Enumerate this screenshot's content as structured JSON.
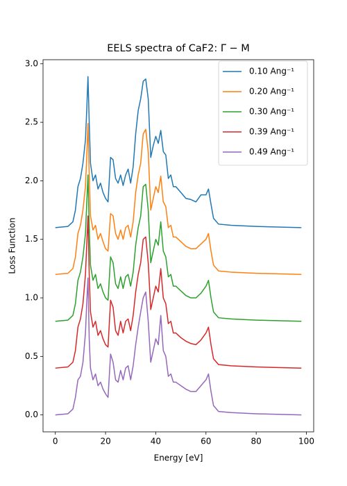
{
  "chart_data": {
    "type": "line",
    "title": "EELS spectra of CaF2: Γ − M",
    "x_label": "Energy [eV]",
    "y_label": "Loss Function",
    "x": [
      0,
      5,
      7,
      8,
      9,
      10,
      11,
      12,
      12.5,
      13,
      13.5,
      14,
      15,
      16,
      17,
      18,
      19,
      20,
      21,
      22,
      23,
      24,
      25,
      26,
      27,
      28,
      29,
      30,
      31,
      32,
      33,
      34,
      35,
      36,
      37,
      38,
      39,
      40,
      41,
      42,
      43,
      44,
      45,
      46,
      47,
      48,
      50,
      52,
      54,
      56,
      58,
      60,
      61,
      62,
      63,
      65,
      70,
      80,
      98
    ],
    "series": [
      {
        "name": "0.10 Ang⁻¹",
        "color": "#1f77b4",
        "values": [
          1.6,
          1.61,
          1.65,
          1.75,
          1.95,
          2.02,
          2.15,
          2.35,
          2.6,
          2.89,
          2.5,
          2.15,
          2.0,
          2.05,
          1.93,
          1.98,
          1.9,
          1.85,
          1.82,
          2.2,
          2.18,
          2.02,
          1.98,
          2.05,
          1.96,
          2.05,
          2.1,
          1.98,
          2.12,
          2.4,
          2.6,
          2.7,
          2.85,
          2.87,
          2.7,
          2.2,
          2.3,
          2.38,
          2.32,
          2.43,
          2.25,
          2.22,
          2.02,
          2.05,
          1.95,
          1.95,
          1.9,
          1.85,
          1.84,
          1.82,
          1.88,
          1.88,
          1.93,
          1.8,
          1.68,
          1.63,
          1.62,
          1.61,
          1.6
        ]
      },
      {
        "name": "0.20 Ang⁻¹",
        "color": "#ff7f0e",
        "values": [
          1.2,
          1.21,
          1.25,
          1.35,
          1.55,
          1.62,
          1.75,
          1.95,
          2.2,
          2.49,
          2.05,
          1.7,
          1.58,
          1.62,
          1.5,
          1.55,
          1.48,
          1.42,
          1.4,
          1.72,
          1.7,
          1.55,
          1.5,
          1.58,
          1.5,
          1.6,
          1.62,
          1.52,
          1.65,
          1.9,
          2.05,
          2.15,
          2.4,
          2.44,
          2.25,
          1.75,
          1.85,
          1.95,
          1.9,
          2.04,
          1.82,
          1.78,
          1.6,
          1.62,
          1.52,
          1.52,
          1.48,
          1.44,
          1.42,
          1.42,
          1.46,
          1.5,
          1.55,
          1.4,
          1.28,
          1.23,
          1.22,
          1.21,
          1.2
        ]
      },
      {
        "name": "0.30 Ang⁻¹",
        "color": "#2ca02c",
        "values": [
          0.8,
          0.81,
          0.85,
          0.95,
          1.15,
          1.22,
          1.35,
          1.55,
          1.8,
          2.05,
          1.6,
          1.28,
          1.15,
          1.2,
          1.08,
          1.12,
          1.05,
          1.0,
          0.98,
          1.35,
          1.3,
          1.12,
          1.08,
          1.18,
          1.08,
          1.18,
          1.2,
          1.1,
          1.22,
          1.45,
          1.6,
          1.7,
          1.95,
          1.97,
          1.75,
          1.3,
          1.4,
          1.5,
          1.45,
          1.65,
          1.4,
          1.35,
          1.18,
          1.2,
          1.1,
          1.1,
          1.06,
          1.02,
          1.0,
          1.0,
          1.04,
          1.1,
          1.15,
          1.0,
          0.88,
          0.83,
          0.82,
          0.81,
          0.8
        ]
      },
      {
        "name": "0.39 Ang⁻¹",
        "color": "#d62728",
        "values": [
          0.4,
          0.41,
          0.45,
          0.55,
          0.75,
          0.82,
          0.95,
          1.2,
          1.45,
          1.7,
          1.2,
          0.88,
          0.75,
          0.8,
          0.68,
          0.72,
          0.65,
          0.6,
          0.58,
          0.98,
          0.92,
          0.72,
          0.68,
          0.8,
          0.7,
          0.8,
          0.82,
          0.72,
          0.85,
          1.05,
          1.2,
          1.3,
          1.5,
          1.52,
          1.3,
          0.9,
          1.0,
          1.1,
          1.05,
          1.25,
          1.0,
          0.95,
          0.78,
          0.8,
          0.7,
          0.7,
          0.66,
          0.63,
          0.61,
          0.6,
          0.64,
          0.7,
          0.75,
          0.6,
          0.48,
          0.43,
          0.42,
          0.41,
          0.4
        ]
      },
      {
        "name": "0.49 Ang⁻¹",
        "color": "#9467bd",
        "values": [
          0,
          0.01,
          0.05,
          0.15,
          0.3,
          0.33,
          0.45,
          0.7,
          0.95,
          1.17,
          0.65,
          0.4,
          0.3,
          0.35,
          0.25,
          0.28,
          0.22,
          0.18,
          0.15,
          0.52,
          0.45,
          0.3,
          0.28,
          0.38,
          0.3,
          0.4,
          0.42,
          0.3,
          0.42,
          0.6,
          0.75,
          0.88,
          1.0,
          1.05,
          0.8,
          0.45,
          0.55,
          0.65,
          0.6,
          0.85,
          0.55,
          0.5,
          0.33,
          0.35,
          0.28,
          0.28,
          0.25,
          0.22,
          0.2,
          0.2,
          0.25,
          0.3,
          0.35,
          0.2,
          0.08,
          0.03,
          0.02,
          0.01,
          0.0
        ]
      }
    ],
    "xlim": [
      -4.9,
      102.9
    ],
    "xticks": [
      0,
      20,
      40,
      60,
      80,
      100
    ],
    "ylim": [
      -0.1445,
      3.0345
    ],
    "yticks": [
      {
        "value": 0,
        "label": "0.0"
      },
      {
        "value": 0.5,
        "label": "0.5"
      },
      {
        "value": 1,
        "label": "1.0"
      },
      {
        "value": 1.5,
        "label": "1.5"
      },
      {
        "value": 2,
        "label": "2.0"
      },
      {
        "value": 2.5,
        "label": "2.5"
      },
      {
        "value": 3,
        "label": "3.0"
      }
    ],
    "legend": "upper right"
  }
}
